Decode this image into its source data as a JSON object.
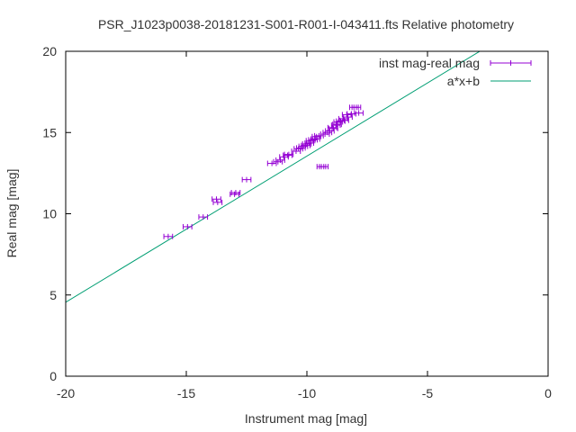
{
  "chart_data": {
    "type": "scatter",
    "title": "PSR_J1023p0038-20181231-S001-R001-I-043411.fts Relative photometry",
    "xlabel": "Instrument mag [mag]",
    "ylabel": "Real mag [mag]",
    "xlim": [
      -20,
      0
    ],
    "ylim": [
      0,
      20
    ],
    "xticks": [
      "-20",
      "-15",
      "-10",
      "-5",
      "0"
    ],
    "yticks": [
      "0",
      "5",
      "10",
      "15",
      "20"
    ],
    "grid": false,
    "legend_position": "top-right",
    "series": [
      {
        "name": "inst mag-real mag",
        "style": "points-with-x-errorbars",
        "color": "#9400d3",
        "points": [
          [
            -15.75,
            8.6
          ],
          [
            -14.95,
            9.2
          ],
          [
            -14.3,
            9.8
          ],
          [
            -13.75,
            10.9
          ],
          [
            -13.7,
            10.7
          ],
          [
            -13.0,
            11.2
          ],
          [
            -12.95,
            11.3
          ],
          [
            -12.5,
            12.1
          ],
          [
            -11.45,
            13.1
          ],
          [
            -11.2,
            13.2
          ],
          [
            -11.1,
            13.3
          ],
          [
            -10.95,
            13.5
          ],
          [
            -10.8,
            13.6
          ],
          [
            -10.75,
            13.65
          ],
          [
            -10.45,
            13.85
          ],
          [
            -10.35,
            14.0
          ],
          [
            -10.25,
            14.05
          ],
          [
            -10.15,
            14.15
          ],
          [
            -10.05,
            14.2
          ],
          [
            -10.0,
            14.3
          ],
          [
            -9.9,
            14.35
          ],
          [
            -9.85,
            14.5
          ],
          [
            -9.75,
            14.55
          ],
          [
            -9.65,
            14.6
          ],
          [
            -9.6,
            14.75
          ],
          [
            -9.5,
            14.8
          ],
          [
            -9.4,
            12.9
          ],
          [
            -9.3,
            12.9
          ],
          [
            -9.25,
            14.9
          ],
          [
            -9.15,
            15.0
          ],
          [
            -9.05,
            15.1
          ],
          [
            -8.95,
            15.3
          ],
          [
            -8.9,
            15.25
          ],
          [
            -8.8,
            15.45
          ],
          [
            -8.75,
            15.5
          ],
          [
            -8.7,
            15.65
          ],
          [
            -8.6,
            15.7
          ],
          [
            -8.5,
            15.85
          ],
          [
            -8.45,
            15.75
          ],
          [
            -8.35,
            16.1
          ],
          [
            -8.3,
            15.95
          ],
          [
            -8.15,
            16.15
          ],
          [
            -8.05,
            16.55
          ],
          [
            -7.95,
            16.55
          ],
          [
            -7.85,
            16.2
          ]
        ],
        "xerr": 0.18
      },
      {
        "name": "a*x+b",
        "style": "line",
        "color": "#009e73",
        "a": 0.9,
        "b": 22.55
      }
    ]
  }
}
